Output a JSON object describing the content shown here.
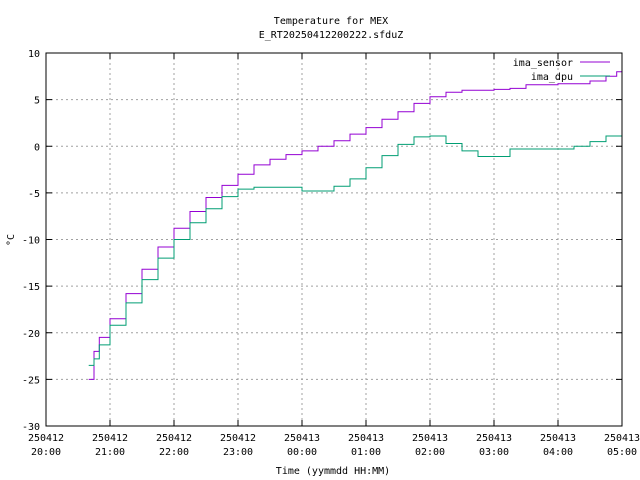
{
  "chart_data": {
    "type": "line",
    "title": "Temperature for MEX",
    "subtitle": "E_RT20250412200222.sfduZ",
    "xlabel": "Time (yymmdd HH:MM)",
    "ylabel": "°C",
    "xlim": [
      "2025-04-12 20:00",
      "2025-04-13 05:00"
    ],
    "ylim": [
      -30,
      10
    ],
    "grid": true,
    "legend_position": "top-right",
    "y_ticks": [
      -30,
      -25,
      -20,
      -15,
      -10,
      -5,
      0,
      5,
      10
    ],
    "x_ticks": [
      {
        "date": "250412",
        "time": "20:00"
      },
      {
        "date": "250412",
        "time": "21:00"
      },
      {
        "date": "250412",
        "time": "22:00"
      },
      {
        "date": "250412",
        "time": "23:00"
      },
      {
        "date": "250413",
        "time": "00:00"
      },
      {
        "date": "250413",
        "time": "01:00"
      },
      {
        "date": "250413",
        "time": "02:00"
      },
      {
        "date": "250413",
        "time": "03:00"
      },
      {
        "date": "250413",
        "time": "04:00"
      },
      {
        "date": "250413",
        "time": "05:00"
      }
    ],
    "series": [
      {
        "name": "ima_sensor",
        "color": "#9400d3",
        "points": [
          [
            "2025-04-12 20:40",
            -25.0
          ],
          [
            "2025-04-12 20:45",
            -22.0
          ],
          [
            "2025-04-12 20:50",
            -20.5
          ],
          [
            "2025-04-12 21:00",
            -18.5
          ],
          [
            "2025-04-12 21:15",
            -15.8
          ],
          [
            "2025-04-12 21:30",
            -13.2
          ],
          [
            "2025-04-12 21:45",
            -10.8
          ],
          [
            "2025-04-12 22:00",
            -8.8
          ],
          [
            "2025-04-12 22:15",
            -7.0
          ],
          [
            "2025-04-12 22:30",
            -5.5
          ],
          [
            "2025-04-12 22:45",
            -4.2
          ],
          [
            "2025-04-12 23:00",
            -3.0
          ],
          [
            "2025-04-12 23:15",
            -2.0
          ],
          [
            "2025-04-12 23:30",
            -1.4
          ],
          [
            "2025-04-12 23:45",
            -0.9
          ],
          [
            "2025-04-13 00:00",
            -0.5
          ],
          [
            "2025-04-13 00:15",
            0.0
          ],
          [
            "2025-04-13 00:30",
            0.6
          ],
          [
            "2025-04-13 00:45",
            1.3
          ],
          [
            "2025-04-13 01:00",
            2.0
          ],
          [
            "2025-04-13 01:15",
            2.9
          ],
          [
            "2025-04-13 01:30",
            3.7
          ],
          [
            "2025-04-13 01:45",
            4.6
          ],
          [
            "2025-04-13 02:00",
            5.3
          ],
          [
            "2025-04-13 02:15",
            5.8
          ],
          [
            "2025-04-13 02:30",
            6.0
          ],
          [
            "2025-04-13 02:45",
            6.0
          ],
          [
            "2025-04-13 03:00",
            6.1
          ],
          [
            "2025-04-13 03:15",
            6.2
          ],
          [
            "2025-04-13 03:30",
            6.6
          ],
          [
            "2025-04-13 03:45",
            6.6
          ],
          [
            "2025-04-13 04:00",
            6.7
          ],
          [
            "2025-04-13 04:30",
            7.0
          ],
          [
            "2025-04-13 04:45",
            7.5
          ],
          [
            "2025-04-13 04:55",
            8.0
          ],
          [
            "2025-04-13 05:00",
            8.1
          ]
        ]
      },
      {
        "name": "ima_dpu",
        "color": "#009e73",
        "points": [
          [
            "2025-04-12 20:40",
            -23.5
          ],
          [
            "2025-04-12 20:45",
            -22.8
          ],
          [
            "2025-04-12 20:50",
            -21.3
          ],
          [
            "2025-04-12 21:00",
            -19.2
          ],
          [
            "2025-04-12 21:15",
            -16.8
          ],
          [
            "2025-04-12 21:30",
            -14.3
          ],
          [
            "2025-04-12 21:45",
            -12.0
          ],
          [
            "2025-04-12 22:00",
            -10.0
          ],
          [
            "2025-04-12 22:15",
            -8.2
          ],
          [
            "2025-04-12 22:30",
            -6.7
          ],
          [
            "2025-04-12 22:45",
            -5.4
          ],
          [
            "2025-04-12 23:00",
            -4.6
          ],
          [
            "2025-04-12 23:15",
            -4.4
          ],
          [
            "2025-04-12 23:30",
            -4.4
          ],
          [
            "2025-04-12 23:45",
            -4.4
          ],
          [
            "2025-04-13 00:00",
            -4.8
          ],
          [
            "2025-04-13 00:15",
            -4.8
          ],
          [
            "2025-04-13 00:30",
            -4.3
          ],
          [
            "2025-04-13 00:45",
            -3.5
          ],
          [
            "2025-04-13 01:00",
            -2.3
          ],
          [
            "2025-04-13 01:15",
            -1.0
          ],
          [
            "2025-04-13 01:30",
            0.2
          ],
          [
            "2025-04-13 01:45",
            1.0
          ],
          [
            "2025-04-13 02:00",
            1.1
          ],
          [
            "2025-04-13 02:15",
            0.3
          ],
          [
            "2025-04-13 02:30",
            -0.5
          ],
          [
            "2025-04-13 02:45",
            -1.1
          ],
          [
            "2025-04-13 03:00",
            -1.1
          ],
          [
            "2025-04-13 03:15",
            -0.3
          ],
          [
            "2025-04-13 03:30",
            -0.3
          ],
          [
            "2025-04-13 03:45",
            -0.3
          ],
          [
            "2025-04-13 04:00",
            -0.3
          ],
          [
            "2025-04-13 04:15",
            0.0
          ],
          [
            "2025-04-13 04:30",
            0.5
          ],
          [
            "2025-04-13 04:45",
            1.1
          ],
          [
            "2025-04-13 05:00",
            1.6
          ]
        ]
      }
    ]
  }
}
